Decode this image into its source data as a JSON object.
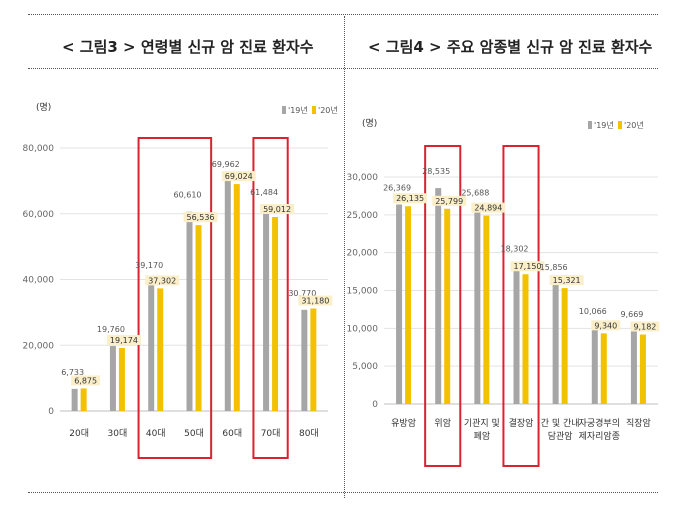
{
  "figures": {
    "left_title": "< 그림3 > 연령별 신규 암 진료 환자수",
    "right_title": "< 그림4 > 주요 암종별 신규 암 진료 환자수"
  },
  "colors": {
    "y2019": "#a6a6a6",
    "y2020": "#f2c200",
    "label2020_bg": "#fbefc9",
    "highlight": "#d9232e"
  },
  "chart_data": [
    {
      "type": "bar",
      "unit": "(명)",
      "categories": [
        "20대",
        "30대",
        "40대",
        "50대",
        "60대",
        "70대",
        "80대"
      ],
      "series": [
        {
          "name": "'19년",
          "values": [
            6733,
            19760,
            39170,
            60610,
            69962,
            61484,
            30770
          ]
        },
        {
          "name": "'20년",
          "values": [
            6875,
            19174,
            37302,
            56536,
            69024,
            59012,
            31180
          ]
        }
      ],
      "ylim": [
        0,
        80000
      ],
      "yticks": [
        "0",
        "20,000",
        "40,000",
        "60,000",
        "80,000"
      ],
      "ytick_values": [
        0,
        20000,
        40000,
        60000,
        80000
      ],
      "legend": "top-right",
      "highlighted_categories": [
        [
          "40대",
          "50대"
        ],
        [
          "70대"
        ]
      ]
    },
    {
      "type": "bar",
      "unit": "(명)",
      "categories": [
        [
          "유방암"
        ],
        [
          "위암"
        ],
        [
          "기관지 및",
          "폐암"
        ],
        [
          "결장암"
        ],
        [
          "간 및 간내",
          "담관암"
        ],
        [
          "자궁경부의",
          "제자리암종"
        ],
        [
          "직장암"
        ]
      ],
      "series": [
        {
          "name": "'19년",
          "values": [
            26369,
            28535,
            25688,
            18302,
            15856,
            10066,
            9669
          ]
        },
        {
          "name": "'20년",
          "values": [
            26135,
            25799,
            24894,
            17150,
            15321,
            9340,
            9182
          ]
        }
      ],
      "ylim": [
        0,
        30000
      ],
      "yticks": [
        "0",
        "5,000",
        "10,000",
        "15,000",
        "20,000",
        "25,000",
        "30,000"
      ],
      "ytick_values": [
        0,
        5000,
        10000,
        15000,
        20000,
        25000,
        30000
      ],
      "legend": "top-right",
      "highlighted_categories": [
        [
          "위암"
        ],
        [
          "결장암"
        ]
      ]
    }
  ]
}
